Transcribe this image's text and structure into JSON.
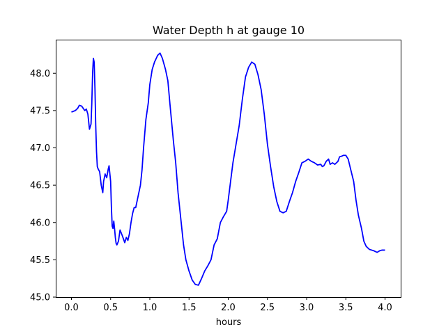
{
  "chart_data": {
    "type": "line",
    "title": "Water Depth h at gauge 10",
    "xlabel": "hours",
    "ylabel": "",
    "xlim": [
      -0.2,
      4.2
    ],
    "ylim": [
      45.0,
      48.45
    ],
    "xticks": [
      "0.0",
      "0.5",
      "1.0",
      "1.5",
      "2.0",
      "2.5",
      "3.0",
      "3.5",
      "4.0"
    ],
    "yticks": [
      "45.0",
      "45.5",
      "46.0",
      "46.5",
      "47.0",
      "47.5",
      "48.0"
    ],
    "grid": false,
    "series": [
      {
        "color": "#0000ff",
        "x": [
          0.0,
          0.05,
          0.08,
          0.1,
          0.13,
          0.17,
          0.19,
          0.21,
          0.23,
          0.25,
          0.26,
          0.27,
          0.28,
          0.29,
          0.3,
          0.31,
          0.32,
          0.33,
          0.34,
          0.36,
          0.38,
          0.4,
          0.41,
          0.43,
          0.45,
          0.47,
          0.48,
          0.5,
          0.51,
          0.52,
          0.53,
          0.54,
          0.55,
          0.56,
          0.57,
          0.58,
          0.6,
          0.62,
          0.65,
          0.68,
          0.7,
          0.72,
          0.74,
          0.76,
          0.78,
          0.8,
          0.82,
          0.85,
          0.88,
          0.9,
          0.92,
          0.95,
          0.98,
          1.0,
          1.03,
          1.06,
          1.1,
          1.13,
          1.16,
          1.2,
          1.23,
          1.26,
          1.3,
          1.33,
          1.36,
          1.4,
          1.43,
          1.46,
          1.5,
          1.54,
          1.58,
          1.62,
          1.66,
          1.7,
          1.74,
          1.78,
          1.82,
          1.86,
          1.9,
          1.94,
          1.98,
          2.0,
          2.03,
          2.06,
          2.1,
          2.14,
          2.18,
          2.22,
          2.26,
          2.3,
          2.34,
          2.38,
          2.42,
          2.46,
          2.5,
          2.54,
          2.58,
          2.62,
          2.66,
          2.7,
          2.74,
          2.78,
          2.82,
          2.86,
          2.9,
          2.94,
          2.98,
          3.02,
          3.06,
          3.1,
          3.14,
          3.18,
          3.2,
          3.22,
          3.25,
          3.28,
          3.3,
          3.33,
          3.36,
          3.4,
          3.42,
          3.45,
          3.47,
          3.5,
          3.53,
          3.56,
          3.6,
          3.63,
          3.66,
          3.7,
          3.73,
          3.76,
          3.8,
          3.83,
          3.86,
          3.9,
          3.93,
          3.96,
          4.0
        ],
        "y": [
          47.48,
          47.5,
          47.53,
          47.57,
          47.56,
          47.5,
          47.52,
          47.45,
          47.25,
          47.32,
          47.6,
          48.0,
          48.2,
          48.15,
          47.8,
          47.3,
          46.95,
          46.75,
          46.72,
          46.68,
          46.5,
          46.4,
          46.55,
          46.65,
          46.6,
          46.72,
          46.76,
          46.55,
          46.2,
          45.95,
          45.92,
          46.02,
          45.92,
          45.8,
          45.72,
          45.7,
          45.75,
          45.9,
          45.82,
          45.73,
          45.8,
          45.76,
          45.85,
          46.0,
          46.12,
          46.2,
          46.2,
          46.35,
          46.5,
          46.7,
          47.0,
          47.38,
          47.6,
          47.85,
          48.05,
          48.15,
          48.24,
          48.27,
          48.2,
          48.05,
          47.9,
          47.55,
          47.1,
          46.8,
          46.4,
          46.0,
          45.7,
          45.5,
          45.35,
          45.23,
          45.17,
          45.16,
          45.25,
          45.35,
          45.42,
          45.5,
          45.7,
          45.78,
          46.0,
          46.08,
          46.15,
          46.3,
          46.55,
          46.8,
          47.05,
          47.3,
          47.65,
          47.95,
          48.08,
          48.15,
          48.12,
          47.98,
          47.78,
          47.45,
          47.05,
          46.75,
          46.48,
          46.28,
          46.15,
          46.13,
          46.15,
          46.28,
          46.4,
          46.55,
          46.67,
          46.8,
          46.82,
          46.85,
          46.82,
          46.8,
          46.77,
          46.78,
          46.75,
          46.76,
          46.82,
          46.85,
          46.78,
          46.8,
          46.78,
          46.82,
          46.88,
          46.89,
          46.9,
          46.9,
          46.85,
          46.72,
          46.55,
          46.3,
          46.1,
          45.92,
          45.75,
          45.68,
          45.64,
          45.63,
          45.62,
          45.6,
          45.62,
          45.63,
          45.63
        ]
      }
    ]
  }
}
